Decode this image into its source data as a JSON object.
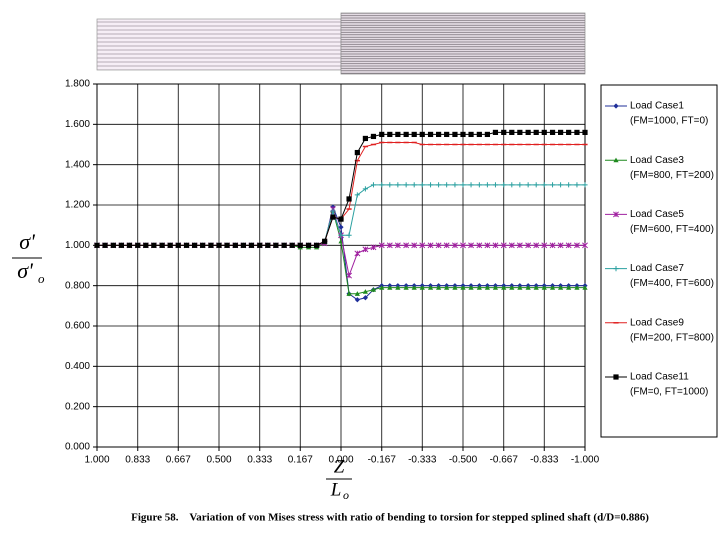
{
  "chart_data": {
    "type": "line",
    "x": [
      1,
      0.967,
      0.933,
      0.9,
      0.867,
      0.833,
      0.8,
      0.767,
      0.733,
      0.7,
      0.667,
      0.633,
      0.6,
      0.567,
      0.533,
      0.5,
      0.467,
      0.433,
      0.4,
      0.367,
      0.333,
      0.3,
      0.267,
      0.233,
      0.2,
      0.167,
      0.133,
      0.1,
      0.067,
      0.033,
      0,
      -0.033,
      -0.067,
      -0.1,
      -0.133,
      -0.167,
      -0.2,
      -0.233,
      -0.267,
      -0.3,
      -0.333,
      -0.367,
      -0.4,
      -0.433,
      -0.467,
      -0.5,
      -0.533,
      -0.567,
      -0.6,
      -0.633,
      -0.667,
      -0.7,
      -0.733,
      -0.767,
      -0.8,
      -0.833,
      -0.867,
      -0.9,
      -0.933,
      -0.967,
      -1
    ],
    "series": [
      {
        "name": "Load Case1",
        "subtitle": "(FM=1000, FT=0)",
        "color": "#1f2f9a",
        "marker": "diamond",
        "values": [
          1,
          1,
          1,
          1,
          1,
          1,
          1,
          1,
          1,
          1,
          1,
          1,
          1,
          1,
          1,
          1,
          1,
          1,
          1,
          1,
          1,
          1,
          1,
          1,
          1,
          1,
          1,
          1.0,
          1.01,
          1.19,
          1.09,
          0.76,
          0.73,
          0.74,
          0.78,
          0.8,
          0.8,
          0.8,
          0.8,
          0.8,
          0.8,
          0.8,
          0.8,
          0.8,
          0.8,
          0.8,
          0.8,
          0.8,
          0.8,
          0.8,
          0.8,
          0.8,
          0.8,
          0.8,
          0.8,
          0.8,
          0.8,
          0.8,
          0.8,
          0.8,
          0.8
        ]
      },
      {
        "name": "Load Case3",
        "subtitle": "(FM=800, FT=200)",
        "color": "#1f8a1f",
        "marker": "triangle",
        "values": [
          1,
          1,
          1,
          1,
          1,
          1,
          1,
          1,
          1,
          1,
          1,
          1,
          1,
          1,
          1,
          1,
          1,
          1,
          1,
          1,
          1,
          1,
          1,
          1,
          1,
          0.99,
          0.99,
          0.99,
          1.01,
          1.17,
          1.02,
          0.76,
          0.76,
          0.77,
          0.78,
          0.79,
          0.79,
          0.79,
          0.79,
          0.79,
          0.79,
          0.79,
          0.79,
          0.79,
          0.79,
          0.79,
          0.79,
          0.79,
          0.79,
          0.79,
          0.79,
          0.79,
          0.79,
          0.79,
          0.79,
          0.79,
          0.79,
          0.79,
          0.79,
          0.79,
          0.79
        ]
      },
      {
        "name": "Load Case5",
        "subtitle": "(FM=600, FT=400)",
        "color": "#a020a0",
        "marker": "x",
        "values": [
          1,
          1,
          1,
          1,
          1,
          1,
          1,
          1,
          1,
          1,
          1,
          1,
          1,
          1,
          1,
          1,
          1,
          1,
          1,
          1,
          1,
          1,
          1,
          1,
          1,
          1,
          1,
          1.0,
          1.01,
          1.18,
          1.05,
          0.85,
          0.96,
          0.98,
          0.99,
          1.0,
          1,
          1,
          1,
          1,
          1,
          1,
          1,
          1,
          1,
          1,
          1,
          1,
          1,
          1,
          1,
          1,
          1,
          1,
          1,
          1,
          1,
          1,
          1,
          1,
          1
        ]
      },
      {
        "name": "Load Case7",
        "subtitle": "(FM=400, FT=600)",
        "color": "#2aa0a0",
        "marker": "plus",
        "values": [
          1,
          1,
          1,
          1,
          1,
          1,
          1,
          1,
          1,
          1,
          1,
          1,
          1,
          1,
          1,
          1,
          1,
          1,
          1,
          1,
          1,
          1,
          1,
          1,
          1,
          1,
          1,
          1.0,
          1.02,
          1.17,
          1.05,
          1.05,
          1.25,
          1.28,
          1.3,
          1.3,
          1.3,
          1.3,
          1.3,
          1.3,
          1.3,
          1.3,
          1.3,
          1.3,
          1.3,
          1.3,
          1.3,
          1.3,
          1.3,
          1.3,
          1.3,
          1.3,
          1.3,
          1.3,
          1.3,
          1.3,
          1.3,
          1.3,
          1.3,
          1.3,
          1.3
        ]
      },
      {
        "name": "Load Case9",
        "subtitle": "(FM=200, FT=800)",
        "color": "#e02020",
        "marker": "dash",
        "values": [
          1,
          1,
          1,
          1,
          1,
          1,
          1,
          1,
          1,
          1,
          1,
          1,
          1,
          1,
          1,
          1,
          1,
          1,
          1,
          1,
          1,
          1,
          1,
          1,
          1,
          1,
          1,
          1.0,
          1.02,
          1.14,
          1.13,
          1.18,
          1.42,
          1.49,
          1.5,
          1.51,
          1.51,
          1.51,
          1.51,
          1.51,
          1.5,
          1.5,
          1.5,
          1.5,
          1.5,
          1.5,
          1.5,
          1.5,
          1.5,
          1.5,
          1.5,
          1.5,
          1.5,
          1.5,
          1.5,
          1.5,
          1.5,
          1.5,
          1.5,
          1.5,
          1.5
        ]
      },
      {
        "name": "Load Case11",
        "subtitle": "(FM=0, FT=1000)",
        "color": "#000000",
        "marker": "square",
        "values": [
          1,
          1,
          1,
          1,
          1,
          1,
          1,
          1,
          1,
          1,
          1,
          1,
          1,
          1,
          1,
          1,
          1,
          1,
          1,
          1,
          1,
          1,
          1,
          1,
          1,
          1,
          1,
          1.0,
          1.02,
          1.14,
          1.13,
          1.23,
          1.46,
          1.53,
          1.54,
          1.55,
          1.55,
          1.55,
          1.55,
          1.55,
          1.55,
          1.55,
          1.55,
          1.55,
          1.55,
          1.55,
          1.55,
          1.55,
          1.55,
          1.56,
          1.56,
          1.56,
          1.56,
          1.56,
          1.56,
          1.56,
          1.56,
          1.56,
          1.56,
          1.56,
          1.56
        ]
      }
    ],
    "xlim": [
      1,
      -1
    ],
    "xticks": [
      {
        "value": 1,
        "label": "1.000"
      },
      {
        "value": 0.833,
        "label": "0.833"
      },
      {
        "value": 0.667,
        "label": "0.667"
      },
      {
        "value": 0.5,
        "label": "0.500"
      },
      {
        "value": 0.333,
        "label": "0.333"
      },
      {
        "value": 0.167,
        "label": "0.167"
      },
      {
        "value": 0,
        "label": "0.000"
      },
      {
        "value": -0.167,
        "label": "-0.167"
      },
      {
        "value": -0.333,
        "label": "-0.333"
      },
      {
        "value": -0.5,
        "label": "-0.500"
      },
      {
        "value": -0.667,
        "label": "-0.667"
      },
      {
        "value": -0.833,
        "label": "-0.833"
      },
      {
        "value": -1,
        "label": "-1.000"
      }
    ],
    "ylim": [
      0,
      1.8
    ],
    "yticks": [
      {
        "value": 0,
        "label": "0.000"
      },
      {
        "value": 0.2,
        "label": "0.200"
      },
      {
        "value": 0.4,
        "label": "0.400"
      },
      {
        "value": 0.6,
        "label": "0.600"
      },
      {
        "value": 0.8,
        "label": "0.800"
      },
      {
        "value": 1,
        "label": "1.000"
      },
      {
        "value": 1.2,
        "label": "1.200"
      },
      {
        "value": 1.4,
        "label": "1.400"
      },
      {
        "value": 1.6,
        "label": "1.600"
      },
      {
        "value": 1.8,
        "label": "1.800"
      }
    ],
    "grid": true,
    "ylabel_top": "σ'",
    "ylabel_bottom": "σ'",
    "ylabel_sub": "o",
    "xlabel_top": "Z",
    "xlabel_bottom": "L",
    "xlabel_sub": "o",
    "caption": "Figure 58.    Variation of von Mises stress with ratio of bending to torsion for stepped splined shaft (d/D=0.886)"
  }
}
